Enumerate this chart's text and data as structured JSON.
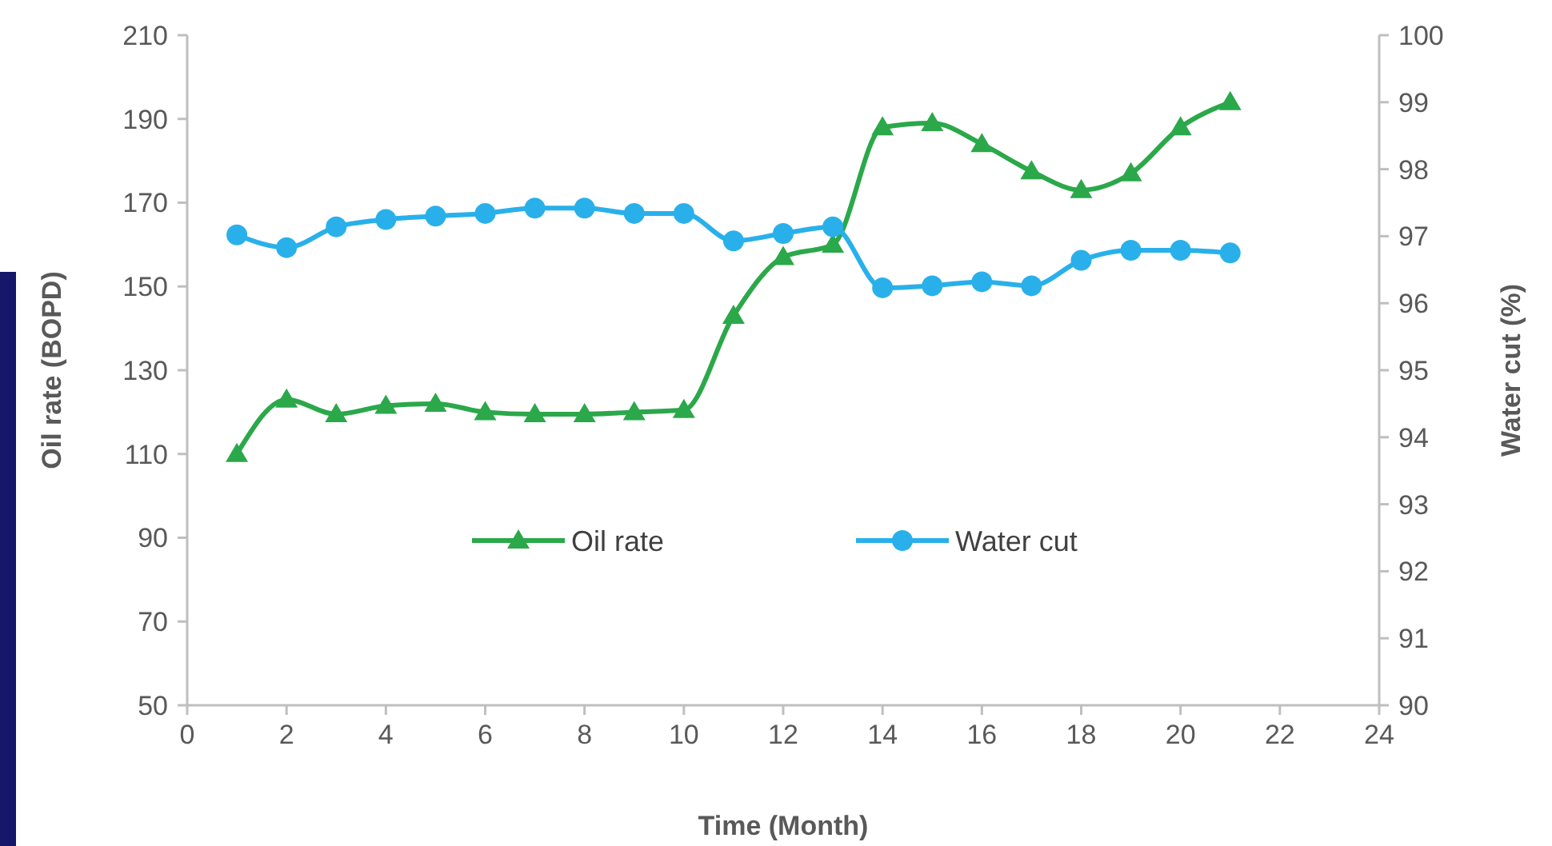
{
  "chart_data": {
    "type": "line",
    "xlabel": "Time (Month)",
    "ylabel": "Oil rate (BOPD)",
    "y2label": "Water cut (%)",
    "x": [
      1,
      2,
      3,
      4,
      5,
      6,
      7,
      8,
      9,
      10,
      11,
      12,
      13,
      14,
      15,
      16,
      17,
      18,
      19,
      20,
      21
    ],
    "xlim": [
      0,
      24
    ],
    "xticks": [
      0,
      2,
      4,
      6,
      8,
      10,
      12,
      14,
      16,
      18,
      20,
      22,
      24
    ],
    "ylim": [
      50,
      210
    ],
    "yticks": [
      50,
      70,
      90,
      110,
      130,
      150,
      170,
      190,
      210
    ],
    "y2lim": [
      90,
      100
    ],
    "y2ticks": [
      90,
      91,
      92,
      93,
      94,
      95,
      96,
      97,
      98,
      99,
      100
    ],
    "grid": false,
    "legend": "center",
    "series": [
      {
        "name": "Oil rate",
        "color": "#2ba84a",
        "marker": "triangle",
        "values": [
          110,
          123,
          119.5,
          121.5,
          122,
          120,
          119.5,
          119.5,
          120,
          120.5,
          143,
          157,
          160,
          188,
          189,
          184,
          177.5,
          173,
          177,
          188,
          194
        ]
      },
      {
        "name": "Water cut",
        "color": "#29b0ea",
        "marker": "circle",
        "axis": "y2",
        "values": [
          97.02,
          96.83,
          97.14,
          97.25,
          97.3,
          97.34,
          97.42,
          97.42,
          97.34,
          97.34,
          96.93,
          97.04,
          97.14,
          96.23,
          96.26,
          96.32,
          96.26,
          96.64,
          96.79,
          96.79,
          96.75
        ]
      }
    ]
  }
}
